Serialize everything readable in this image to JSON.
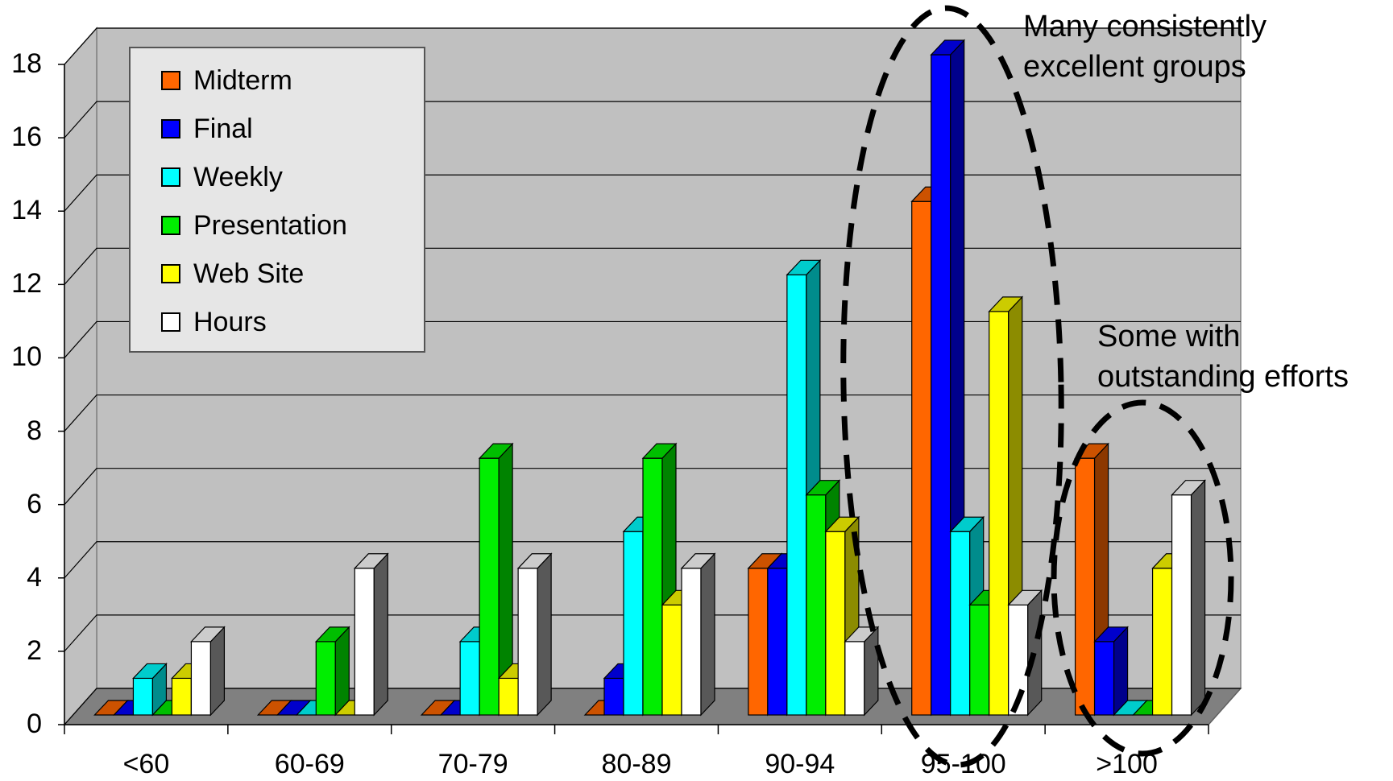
{
  "chart_data": {
    "type": "bar",
    "title": "",
    "xlabel": "",
    "ylabel": "",
    "categories": [
      "<60",
      "60-69",
      "70-79",
      "80-89",
      "90-94",
      "95-100",
      ">100"
    ],
    "ylim": [
      0,
      18
    ],
    "yticks": [
      "0",
      "2",
      "4",
      "6",
      "8",
      "10",
      "12",
      "14",
      "16",
      "18"
    ],
    "grid": true,
    "legend_position": "top-left",
    "series": [
      {
        "name": "Midterm",
        "color": "#ff6600",
        "values": [
          0,
          0,
          0,
          0,
          4,
          14,
          7
        ]
      },
      {
        "name": "Final",
        "color": "#0000ff",
        "values": [
          0,
          0,
          0,
          1,
          4,
          18,
          2
        ]
      },
      {
        "name": "Weekly",
        "color": "#00ffff",
        "values": [
          1,
          0,
          2,
          5,
          12,
          5,
          0
        ]
      },
      {
        "name": "Presentation",
        "color": "#00ee00",
        "values": [
          0,
          2,
          7,
          7,
          6,
          3,
          0
        ]
      },
      {
        "name": "Web Site",
        "color": "#ffff00",
        "values": [
          1,
          0,
          1,
          3,
          5,
          11,
          4
        ]
      },
      {
        "name": "Hours",
        "color": "#ffffff",
        "values": [
          2,
          4,
          4,
          4,
          2,
          3,
          6
        ]
      }
    ],
    "annotations": [
      {
        "line1": "Many consistently",
        "line2": "excellent groups"
      },
      {
        "line1": "Some with",
        "line2": "outstanding efforts"
      }
    ]
  }
}
